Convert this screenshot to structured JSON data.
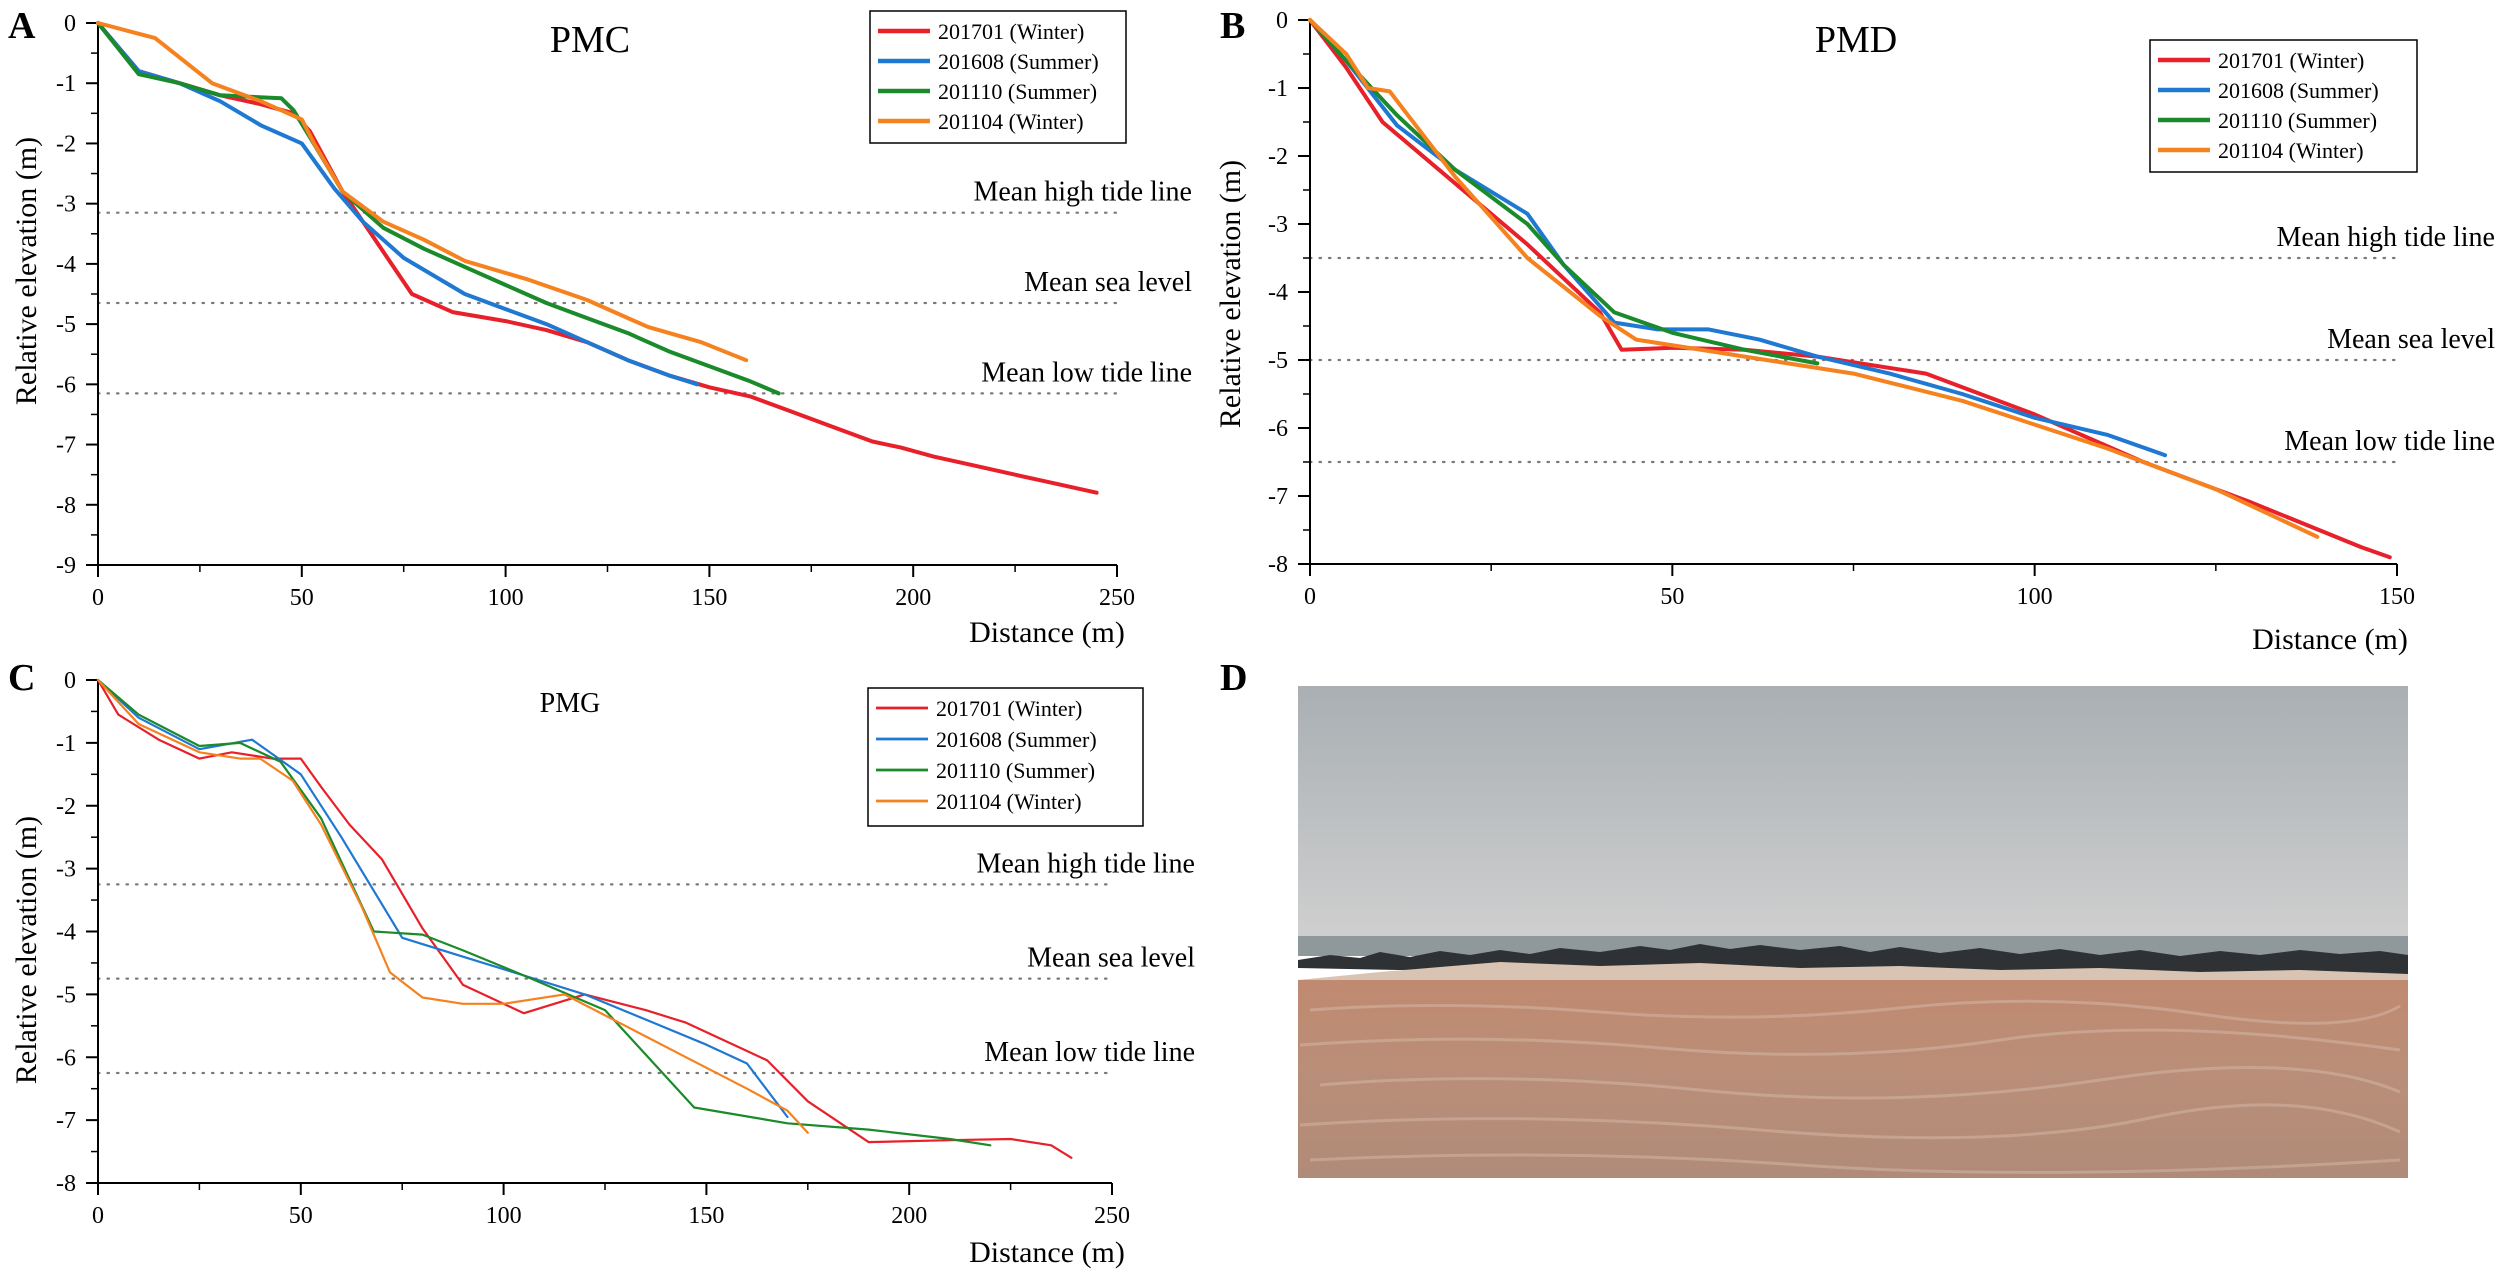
{
  "panels": [
    {
      "letter": "A",
      "title": "PMC",
      "chart_data": {
        "type": "line",
        "title": "PMC",
        "xlabel": "Distance (m)",
        "ylabel": "Relative elevation (m)",
        "xlim": [
          0,
          250
        ],
        "ylim": [
          -9,
          0
        ],
        "xticks": [
          0,
          50,
          100,
          150,
          200,
          250
        ],
        "yticks": [
          0,
          -1,
          -2,
          -3,
          -4,
          -5,
          -6,
          -7,
          -8,
          -9
        ],
        "grid": false,
        "legend_position": "top-right",
        "reference_lines": [
          {
            "label": "Mean high tide line",
            "y": -3.15
          },
          {
            "label": "Mean sea level",
            "y": -4.65
          },
          {
            "label": "Mean low tide line",
            "y": -6.15
          }
        ],
        "series": [
          {
            "name": "201701 (Winter)",
            "color": "#e8202a",
            "x": [
              0,
              10,
              20,
              30,
              40,
              48,
              52,
              60,
              70,
              77,
              87,
              100,
              110,
              120,
              130,
              140,
              150,
              160,
              170,
              180,
              190,
              197,
              205,
              215,
              225,
              235,
              245
            ],
            "y": [
              0,
              -0.8,
              -1.0,
              -1.2,
              -1.35,
              -1.5,
              -1.8,
              -2.8,
              -3.8,
              -4.5,
              -4.8,
              -4.95,
              -5.1,
              -5.3,
              -5.6,
              -5.85,
              -6.05,
              -6.2,
              -6.45,
              -6.7,
              -6.95,
              -7.05,
              -7.2,
              -7.35,
              -7.5,
              -7.65,
              -7.8
            ]
          },
          {
            "name": "201608 (Summer)",
            "color": "#1f78d1",
            "x": [
              0,
              10,
              20,
              30,
              40,
              50,
              58,
              65,
              75,
              90,
              100,
              110,
              120,
              130,
              140,
              147
            ],
            "y": [
              0,
              -0.8,
              -1.0,
              -1.3,
              -1.7,
              -2.0,
              -2.75,
              -3.3,
              -3.9,
              -4.5,
              -4.75,
              -5.0,
              -5.3,
              -5.6,
              -5.85,
              -6.0
            ]
          },
          {
            "name": "201110 (Summer)",
            "color": "#1a8a2a",
            "x": [
              0,
              10,
              20,
              30,
              45,
              48,
              52,
              60,
              70,
              80,
              90,
              100,
              110,
              120,
              130,
              140,
              150,
              160,
              167
            ],
            "y": [
              0,
              -0.85,
              -1.0,
              -1.2,
              -1.25,
              -1.45,
              -1.9,
              -2.8,
              -3.4,
              -3.75,
              -4.05,
              -4.35,
              -4.65,
              -4.9,
              -5.15,
              -5.45,
              -5.7,
              -5.95,
              -6.15
            ]
          },
          {
            "name": "201104 (Winter)",
            "color": "#f5821f",
            "x": [
              0,
              14,
              28,
              40,
              50,
              53,
              60,
              70,
              80,
              90,
              105,
              120,
              135,
              148,
              159
            ],
            "y": [
              0,
              -0.25,
              -1.0,
              -1.3,
              -1.6,
              -2.0,
              -2.8,
              -3.3,
              -3.6,
              -3.95,
              -4.25,
              -4.6,
              -5.05,
              -5.3,
              -5.6
            ]
          }
        ]
      }
    },
    {
      "letter": "B",
      "title": "PMD",
      "chart_data": {
        "type": "line",
        "title": "PMD",
        "xlabel": "Distance (m)",
        "ylabel": "Relative elevation (m)",
        "xlim": [
          0,
          150
        ],
        "ylim": [
          -8,
          0
        ],
        "xticks": [
          0,
          50,
          100,
          150
        ],
        "yticks": [
          0,
          -1,
          -2,
          -3,
          -4,
          -5,
          -6,
          -7,
          -8
        ],
        "grid": false,
        "legend_position": "top-right",
        "reference_lines": [
          {
            "label": "Mean high tide line",
            "y": -3.5
          },
          {
            "label": "Mean sea level",
            "y": -5.0
          },
          {
            "label": "Mean low tide line",
            "y": -6.5
          }
        ],
        "series": [
          {
            "name": "201701 (Winter)",
            "color": "#e8202a",
            "x": [
              0,
              5,
              10,
              20,
              30,
              40,
              43,
              50,
              60,
              70,
              85,
              100,
              115,
              130,
              145,
              149
            ],
            "y": [
              0,
              -0.7,
              -1.5,
              -2.4,
              -3.3,
              -4.3,
              -4.85,
              -4.82,
              -4.85,
              -4.95,
              -5.2,
              -5.8,
              -6.5,
              -7.1,
              -7.75,
              -7.9
            ]
          },
          {
            "name": "201608 (Summer)",
            "color": "#1f78d1",
            "x": [
              0,
              5,
              12,
              20,
              30,
              35,
              42,
              48,
              55,
              62,
              70,
              80,
              90,
              100,
              110,
              118
            ],
            "y": [
              0,
              -0.6,
              -1.55,
              -2.2,
              -2.85,
              -3.6,
              -4.45,
              -4.55,
              -4.55,
              -4.7,
              -4.95,
              -5.2,
              -5.5,
              -5.85,
              -6.1,
              -6.4
            ]
          },
          {
            "name": "201110 (Summer)",
            "color": "#1a8a2a",
            "x": [
              0,
              5,
              12,
              20,
              30,
              35,
              42,
              50,
              60,
              70
            ],
            "y": [
              0,
              -0.6,
              -1.4,
              -2.2,
              -3.0,
              -3.6,
              -4.3,
              -4.6,
              -4.85,
              -5.05
            ]
          },
          {
            "name": "201104 (Winter)",
            "color": "#f5821f",
            "x": [
              0,
              5,
              8,
              11,
              20,
              30,
              40,
              45,
              60,
              75,
              90,
              110,
              125,
              139
            ],
            "y": [
              0,
              -0.5,
              -1.0,
              -1.05,
              -2.3,
              -3.5,
              -4.35,
              -4.7,
              -4.95,
              -5.2,
              -5.6,
              -6.3,
              -6.9,
              -7.6
            ]
          }
        ]
      }
    },
    {
      "letter": "C",
      "title": "PMG",
      "chart_data": {
        "type": "line",
        "title": "PMG",
        "xlabel": "Distance (m)",
        "ylabel": "Relative elevation (m)",
        "xlim": [
          0,
          250
        ],
        "ylim": [
          -8,
          0
        ],
        "xticks": [
          0,
          50,
          100,
          150,
          200,
          250
        ],
        "yticks": [
          0,
          -1,
          -2,
          -3,
          -4,
          -5,
          -6,
          -7,
          -8
        ],
        "grid": false,
        "legend_position": "top-right",
        "reference_lines": [
          {
            "label": "Mean high tide line",
            "y": -3.25
          },
          {
            "label": "Mean sea level",
            "y": -4.75
          },
          {
            "label": "Mean low tide line",
            "y": -6.25
          }
        ],
        "series": [
          {
            "name": "201701 (Winter)",
            "color": "#e8202a",
            "x": [
              0,
              5,
              15,
              25,
              33,
              43,
              50,
              55,
              62,
              70,
              80,
              90,
              105,
              120,
              135,
              145,
              160,
              165,
              175,
              190,
              210,
              225,
              235,
              240
            ],
            "y": [
              0,
              -0.55,
              -0.95,
              -1.25,
              -1.15,
              -1.25,
              -1.25,
              -1.7,
              -2.3,
              -2.85,
              -3.95,
              -4.85,
              -5.3,
              -5.0,
              -5.25,
              -5.45,
              -5.9,
              -6.05,
              -6.7,
              -7.35,
              -7.32,
              -7.3,
              -7.4,
              -7.6
            ]
          },
          {
            "name": "201608 (Summer)",
            "color": "#1f78d1",
            "x": [
              0,
              10,
              25,
              38,
              50,
              60,
              75,
              90,
              105,
              120,
              135,
              150,
              160,
              170
            ],
            "y": [
              0,
              -0.6,
              -1.1,
              -0.95,
              -1.5,
              -2.5,
              -4.1,
              -4.4,
              -4.7,
              -5.0,
              -5.4,
              -5.8,
              -6.1,
              -6.95
            ]
          },
          {
            "name": "201110 (Summer)",
            "color": "#1a8a2a",
            "x": [
              0,
              10,
              25,
              35,
              45,
              55,
              68,
              80,
              90,
              105,
              125,
              147,
              170,
              190,
              210,
              220
            ],
            "y": [
              0,
              -0.55,
              -1.05,
              -1.0,
              -1.3,
              -2.2,
              -4.0,
              -4.05,
              -4.3,
              -4.7,
              -5.25,
              -6.8,
              -7.05,
              -7.15,
              -7.3,
              -7.4
            ]
          },
          {
            "name": "201104 (Winter)",
            "color": "#f5821f",
            "x": [
              0,
              10,
              25,
              35,
              40,
              48,
              55,
              65,
              72,
              80,
              90,
              100,
              115,
              130,
              145,
              160,
              170,
              175
            ],
            "y": [
              0,
              -0.7,
              -1.15,
              -1.25,
              -1.25,
              -1.6,
              -2.3,
              -3.6,
              -4.65,
              -5.05,
              -5.15,
              -5.15,
              -5.0,
              -5.5,
              -6.0,
              -6.5,
              -6.85,
              -7.2
            ]
          }
        ]
      }
    }
  ],
  "photo": {
    "letter": "D",
    "colors": {
      "sky_top": "#a9afb3",
      "sky_bottom": "#cfcfcf",
      "sea": "#8f999c",
      "rocks": "#2f3235",
      "sand_top": "#c08a70",
      "sand_bottom": "#b38c79"
    }
  }
}
